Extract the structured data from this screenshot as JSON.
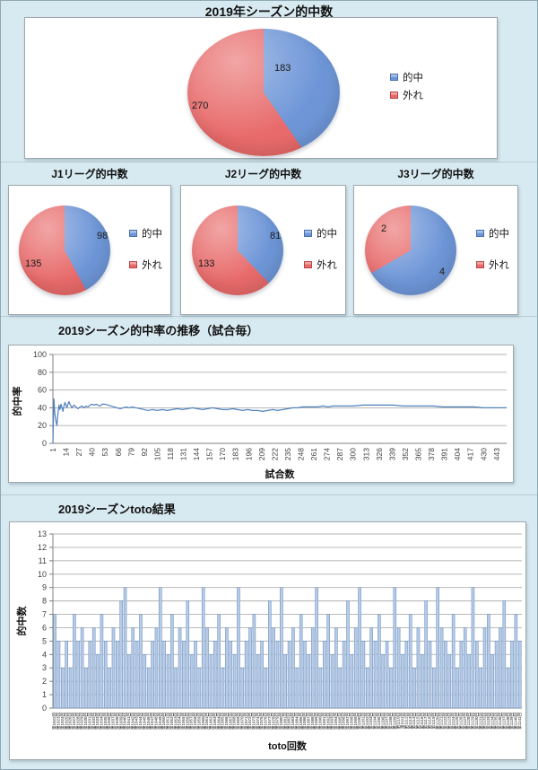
{
  "colors": {
    "bg": "#d8eaf1",
    "hit": "#6e96d7",
    "hit_light": "#a9c3ec",
    "miss": "#e86a6a",
    "miss_light": "#f2a6a6",
    "line": "#4f81bd",
    "bar_fill": "#b7cbe5",
    "bar_stroke": "#7396c6",
    "grid": "#b0b0b0",
    "axis": "#808080",
    "tick_text": "#3f3f3f"
  },
  "chart_data": [
    {
      "type": "pie",
      "title": "2019年シーズン的中数",
      "labels": [
        "的中",
        "外れ"
      ],
      "values": [
        183,
        270
      ]
    },
    {
      "type": "pie",
      "title": "J1リーグ的中数",
      "labels": [
        "的中",
        "外れ"
      ],
      "values": [
        98,
        135
      ]
    },
    {
      "type": "pie",
      "title": "J2リーグ的中数",
      "labels": [
        "的中",
        "外れ"
      ],
      "values": [
        81,
        133
      ]
    },
    {
      "type": "pie",
      "title": "J3リーグ的中数",
      "labels": [
        "的中",
        "外れ"
      ],
      "values": [
        4,
        2
      ]
    },
    {
      "type": "line",
      "title": "2019シーズン的中率の推移（試合毎）",
      "xlabel": "試合数",
      "ylabel": "的中率",
      "ylim": [
        0,
        100
      ],
      "yticks": [
        0,
        20,
        40,
        60,
        80,
        100
      ],
      "xticks": [
        1,
        14,
        27,
        40,
        53,
        66,
        79,
        92,
        105,
        118,
        131,
        144,
        157,
        170,
        183,
        196,
        209,
        222,
        235,
        248,
        261,
        274,
        287,
        300,
        313,
        326,
        339,
        352,
        365,
        378,
        391,
        404,
        417,
        430,
        443
      ],
      "xmax": 453,
      "points": [
        [
          1,
          0
        ],
        [
          2,
          50
        ],
        [
          3,
          33
        ],
        [
          4,
          25
        ],
        [
          5,
          20
        ],
        [
          6,
          33
        ],
        [
          7,
          43
        ],
        [
          8,
          38
        ],
        [
          9,
          44
        ],
        [
          10,
          40
        ],
        [
          11,
          36
        ],
        [
          12,
          42
        ],
        [
          13,
          46
        ],
        [
          14,
          43
        ],
        [
          15,
          40
        ],
        [
          16,
          44
        ],
        [
          17,
          47
        ],
        [
          18,
          44
        ],
        [
          19,
          42
        ],
        [
          20,
          40
        ],
        [
          22,
          43
        ],
        [
          24,
          41
        ],
        [
          26,
          39
        ],
        [
          28,
          41
        ],
        [
          30,
          42
        ],
        [
          32,
          40
        ],
        [
          34,
          42
        ],
        [
          36,
          41
        ],
        [
          38,
          43
        ],
        [
          40,
          44
        ],
        [
          42,
          43
        ],
        [
          44,
          44
        ],
        [
          46,
          43
        ],
        [
          48,
          42
        ],
        [
          50,
          44
        ],
        [
          53,
          44
        ],
        [
          56,
          43
        ],
        [
          59,
          42
        ],
        [
          62,
          41
        ],
        [
          65,
          40
        ],
        [
          68,
          39
        ],
        [
          71,
          40
        ],
        [
          74,
          41
        ],
        [
          77,
          40
        ],
        [
          80,
          41
        ],
        [
          84,
          40
        ],
        [
          88,
          39
        ],
        [
          92,
          38
        ],
        [
          96,
          37
        ],
        [
          100,
          38
        ],
        [
          105,
          37
        ],
        [
          110,
          38
        ],
        [
          115,
          37
        ],
        [
          120,
          38
        ],
        [
          125,
          39
        ],
        [
          130,
          38
        ],
        [
          135,
          39
        ],
        [
          140,
          40
        ],
        [
          145,
          39
        ],
        [
          150,
          38
        ],
        [
          155,
          39
        ],
        [
          160,
          40
        ],
        [
          165,
          39
        ],
        [
          170,
          38
        ],
        [
          175,
          38
        ],
        [
          180,
          39
        ],
        [
          185,
          38
        ],
        [
          190,
          37
        ],
        [
          195,
          38
        ],
        [
          200,
          37
        ],
        [
          205,
          37
        ],
        [
          210,
          36
        ],
        [
          215,
          37
        ],
        [
          220,
          38
        ],
        [
          225,
          37
        ],
        [
          230,
          38
        ],
        [
          235,
          39
        ],
        [
          240,
          40
        ],
        [
          245,
          40
        ],
        [
          250,
          41
        ],
        [
          255,
          41
        ],
        [
          260,
          41
        ],
        [
          265,
          41
        ],
        [
          270,
          42
        ],
        [
          275,
          41
        ],
        [
          280,
          42
        ],
        [
          285,
          42
        ],
        [
          290,
          42
        ],
        [
          295,
          42
        ],
        [
          300,
          42
        ],
        [
          310,
          43
        ],
        [
          320,
          43
        ],
        [
          330,
          43
        ],
        [
          340,
          43
        ],
        [
          350,
          42
        ],
        [
          360,
          42
        ],
        [
          370,
          42
        ],
        [
          380,
          42
        ],
        [
          390,
          41
        ],
        [
          400,
          41
        ],
        [
          410,
          41
        ],
        [
          420,
          41
        ],
        [
          430,
          40
        ],
        [
          443,
          40
        ],
        [
          453,
          40
        ]
      ]
    },
    {
      "type": "bar",
      "title": "2019シーズンtoto結果",
      "xlabel": "toto回数",
      "ylabel": "的中数",
      "ylim": [
        0,
        13
      ],
      "yticks": [
        0,
        1,
        2,
        3,
        4,
        5,
        6,
        7,
        8,
        9,
        10,
        11,
        12,
        13
      ],
      "values": [
        7,
        5,
        3,
        5,
        3,
        7,
        5,
        6,
        3,
        5,
        6,
        4,
        7,
        5,
        3,
        6,
        5,
        8,
        9,
        4,
        6,
        5,
        7,
        4,
        3,
        5,
        6,
        9,
        5,
        4,
        7,
        3,
        6,
        5,
        8,
        4,
        5,
        3,
        9,
        6,
        4,
        5,
        7,
        3,
        6,
        5,
        4,
        9,
        3,
        5,
        6,
        7,
        4,
        5,
        3,
        8,
        6,
        5,
        9,
        4,
        5,
        6,
        3,
        7,
        5,
        4,
        6,
        9,
        3,
        5,
        7,
        4,
        6,
        3,
        5,
        8,
        4,
        6,
        9,
        5,
        3,
        6,
        5,
        7,
        4,
        5,
        3,
        9,
        6,
        4,
        5,
        7,
        3,
        6,
        4,
        8,
        5,
        3,
        9,
        6,
        5,
        4,
        7,
        3,
        5,
        6,
        4,
        9,
        5,
        3,
        6,
        7,
        4,
        5,
        6,
        8,
        3,
        5,
        7,
        5
      ],
      "categories": [
        "第1022回",
        "第1023回",
        "第1024回",
        "第1025回",
        "第1026回",
        "第1027回",
        "第1028回",
        "第1029回",
        "第1030回",
        "第1031回",
        "第1032回",
        "第1033回",
        "第1034回",
        "第1035回",
        "第1036回",
        "第1037回",
        "第1038回",
        "第1039回",
        "第1040回",
        "第1041回",
        "第1042回",
        "第1043回",
        "第1044回",
        "第1045回",
        "第1046回",
        "第1047回",
        "第1048回",
        "第1049回",
        "第1050回",
        "第1051回",
        "第1052回",
        "第1053回",
        "第1054回",
        "第1055回",
        "第1056回",
        "第1057回",
        "第1058回",
        "第1059回",
        "第1060回",
        "第1061回",
        "第1062回",
        "第1063回",
        "第1064回",
        "第1065回",
        "第1066回",
        "第1067回",
        "第1068回",
        "第1069回",
        "第1070回",
        "第1071回",
        "第1072回",
        "第1073回",
        "第1074回",
        "第1075回",
        "第1076回",
        "第1077回",
        "第1078回",
        "第1079回",
        "第1080回",
        "第1081回",
        "第1082回",
        "第1083回",
        "第1084回",
        "第1085回",
        "第1086回",
        "第1087回",
        "第1088回",
        "第1089回",
        "第1090回",
        "第1091回",
        "第1092回",
        "第1093回",
        "第1094回",
        "第1095回",
        "第1096回",
        "第1097回",
        "第1098回",
        "第1099回",
        "第1100回",
        "第1101回",
        "第1102回",
        "第1103回",
        "第1104回",
        "第1105回",
        "第1106回",
        "第1107回",
        "第1108回",
        "第1109回",
        "第1110回",
        "第1111回",
        "第1112回",
        "第1113回",
        "第1114回",
        "第1115回",
        "第1116回",
        "第1117回",
        "第1118回",
        "第1119回",
        "第1120回",
        "第1121回",
        "第1122回",
        "第1123回",
        "第1124回",
        "第1125回",
        "第1126回",
        "第1127回",
        "第1128回",
        "第1129回",
        "第1130回",
        "第1131回",
        "第1132回",
        "第1133回",
        "第1134回",
        "第1135回",
        "第1136回",
        "第1137回",
        "第1138回",
        "第1139回",
        "第1140回",
        "第1141回"
      ]
    }
  ]
}
